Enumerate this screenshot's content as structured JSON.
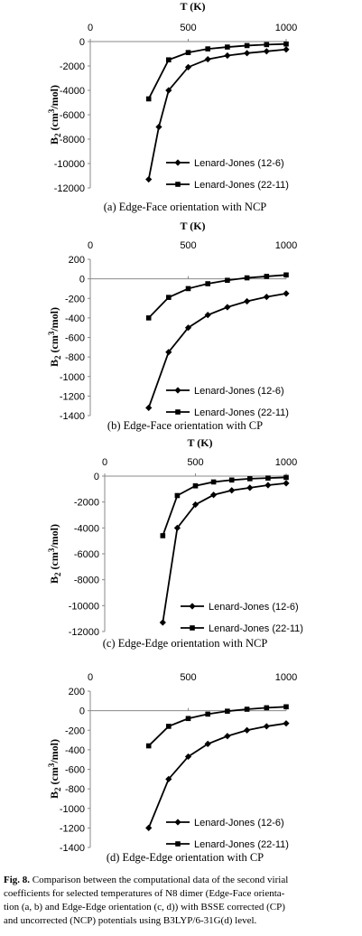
{
  "chart_data": [
    {
      "type": "line",
      "caption": "(a) Edge-Face orientation with NCP",
      "xlabel": "T (K)",
      "ylabel": "B2 (cm3/mol)",
      "xlim": [
        0,
        1000
      ],
      "ylim": [
        -12000,
        0
      ],
      "xticks": [
        "0",
        "500",
        "1000"
      ],
      "yticks": [
        "0",
        "-2000",
        "-4000",
        "-6000",
        "-8000",
        "-10000",
        "-12000"
      ],
      "legend": "inside-bottom-right",
      "series": [
        {
          "name": "Lenard-Jones (12-6)",
          "marker": "diamond",
          "x": [
            298.15,
            350,
            400,
            500,
            600,
            700,
            800,
            900,
            1000
          ],
          "y": [
            -11300,
            -7000,
            -4000,
            -2100,
            -1450,
            -1150,
            -950,
            -800,
            -650
          ]
        },
        {
          "name": "Lenard-Jones (22-11)",
          "marker": "square",
          "x": [
            298.15,
            400,
            500,
            600,
            700,
            800,
            900,
            1000
          ],
          "y": [
            -4700,
            -1500,
            -900,
            -600,
            -450,
            -330,
            -250,
            -200
          ]
        }
      ]
    },
    {
      "type": "line",
      "caption": "(b) Edge-Face orientation with CP",
      "xlabel": "T (K)",
      "ylabel": "B2 (cm3/mol)",
      "xlim": [
        0,
        1000
      ],
      "ylim": [
        -1400,
        200
      ],
      "xticks": [
        "0",
        "500",
        "1000"
      ],
      "yticks": [
        "200",
        "0",
        "-200",
        "-400",
        "-600",
        "-800",
        "-1000",
        "-1200",
        "-1400"
      ],
      "legend": "inside-bottom-right",
      "series": [
        {
          "name": "Lenard-Jones (12-6)",
          "marker": "diamond",
          "x": [
            298.15,
            400,
            500,
            600,
            700,
            800,
            900,
            1000
          ],
          "y": [
            -1320,
            -750,
            -500,
            -370,
            -290,
            -230,
            -185,
            -150
          ]
        },
        {
          "name": "Lenard-Jones (22-11)",
          "marker": "square",
          "x": [
            298.15,
            400,
            500,
            600,
            700,
            800,
            900,
            1000
          ],
          "y": [
            -400,
            -190,
            -100,
            -50,
            -15,
            10,
            25,
            40
          ]
        }
      ]
    },
    {
      "type": "line",
      "caption": "(c) Edge-Edge orientation with NCP",
      "xlabel": "T (K)",
      "ylabel": "B2 (cm3/mol)",
      "xlim": [
        0,
        1000
      ],
      "ylim": [
        -12000,
        0
      ],
      "xticks": [
        "0",
        "500",
        "1000"
      ],
      "yticks": [
        "0",
        "-2000",
        "-4000",
        "-6000",
        "-8000",
        "-10000",
        "-12000"
      ],
      "legend": "inside-bottom-right",
      "series": [
        {
          "name": "Lenard-Jones (12-6)",
          "marker": "diamond",
          "x": [
            320,
            400,
            500,
            600,
            700,
            800,
            900,
            1000
          ],
          "y": [
            -11300,
            -4000,
            -2200,
            -1450,
            -1100,
            -900,
            -700,
            -550
          ]
        },
        {
          "name": "Lenard-Jones (22-11)",
          "marker": "square",
          "x": [
            320,
            400,
            500,
            600,
            700,
            800,
            900,
            1000
          ],
          "y": [
            -4600,
            -1500,
            -750,
            -450,
            -300,
            -200,
            -150,
            -100
          ]
        }
      ]
    },
    {
      "type": "line",
      "caption": "(d) Edge-Edge orientation with CP",
      "xlabel": "",
      "ylabel": "B2 (cm3/mol)",
      "xlim": [
        0,
        1000
      ],
      "ylim": [
        -1400,
        200
      ],
      "xticks": [
        "0",
        "500",
        "1000"
      ],
      "yticks": [
        "200",
        "0",
        "-200",
        "-400",
        "-600",
        "-800",
        "-1000",
        "-1200",
        "-1400"
      ],
      "legend": "inside-bottom-right",
      "series": [
        {
          "name": "Lenard-Jones (12-6)",
          "marker": "diamond",
          "x": [
            298.15,
            400,
            500,
            600,
            700,
            800,
            900,
            1000
          ],
          "y": [
            -1200,
            -700,
            -470,
            -340,
            -260,
            -200,
            -160,
            -130
          ]
        },
        {
          "name": "Lenard-Jones (22-11)",
          "marker": "square",
          "x": [
            298.15,
            400,
            500,
            600,
            700,
            800,
            900,
            1000
          ],
          "y": [
            -360,
            -160,
            -80,
            -35,
            -5,
            15,
            30,
            40
          ]
        }
      ]
    }
  ],
  "figure_caption": {
    "label": "Fig. 8.",
    "lines": [
      "Comparison between the computational data of the second virial",
      "coefficients for selected temperatures of N8 dimer (Edge-Face orienta-",
      "tion (a, b) and Edge-Edge orientation (c, d)) with BSSE corrected (CP)",
      "and uncorrected (NCP) potentials using B3LYP/6-31G(d) level."
    ],
    "line1_rest": " Comparison between the computational data of the second virial"
  }
}
